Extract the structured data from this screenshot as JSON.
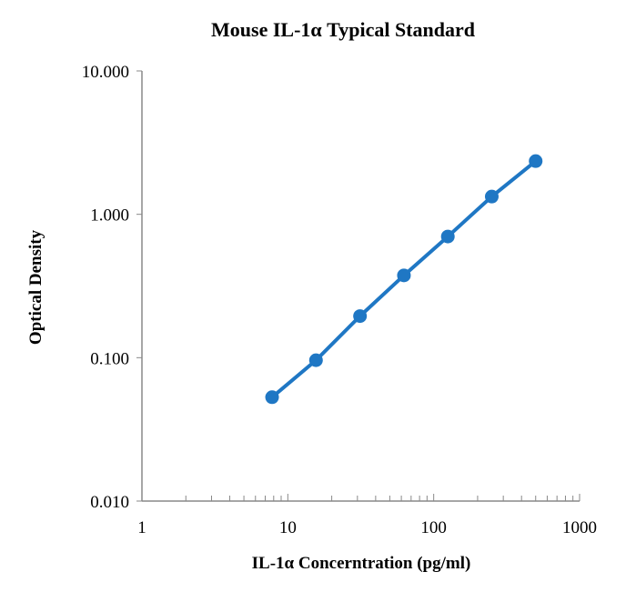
{
  "chart_data": {
    "type": "scatter",
    "title": "Mouse IL-1α Typical Standard",
    "xlabel": "IL-1α Concerntration (pg/ml)",
    "ylabel": "Optical Density",
    "xscale": "log",
    "yscale": "log",
    "xlim": [
      1,
      1000
    ],
    "ylim": [
      0.01,
      10
    ],
    "xticks": [
      "1",
      "10",
      "100",
      "1000"
    ],
    "yticks": [
      "0.010",
      "0.100",
      "1.000",
      "10.000"
    ],
    "grid": false,
    "legend": "none",
    "series": [
      {
        "name": "Standard",
        "color": "#1f77c4",
        "x": [
          7.8,
          15.6,
          31.25,
          62.5,
          125,
          250,
          500
        ],
        "y": [
          0.053,
          0.096,
          0.195,
          0.375,
          0.7,
          1.33,
          2.35
        ]
      }
    ]
  }
}
